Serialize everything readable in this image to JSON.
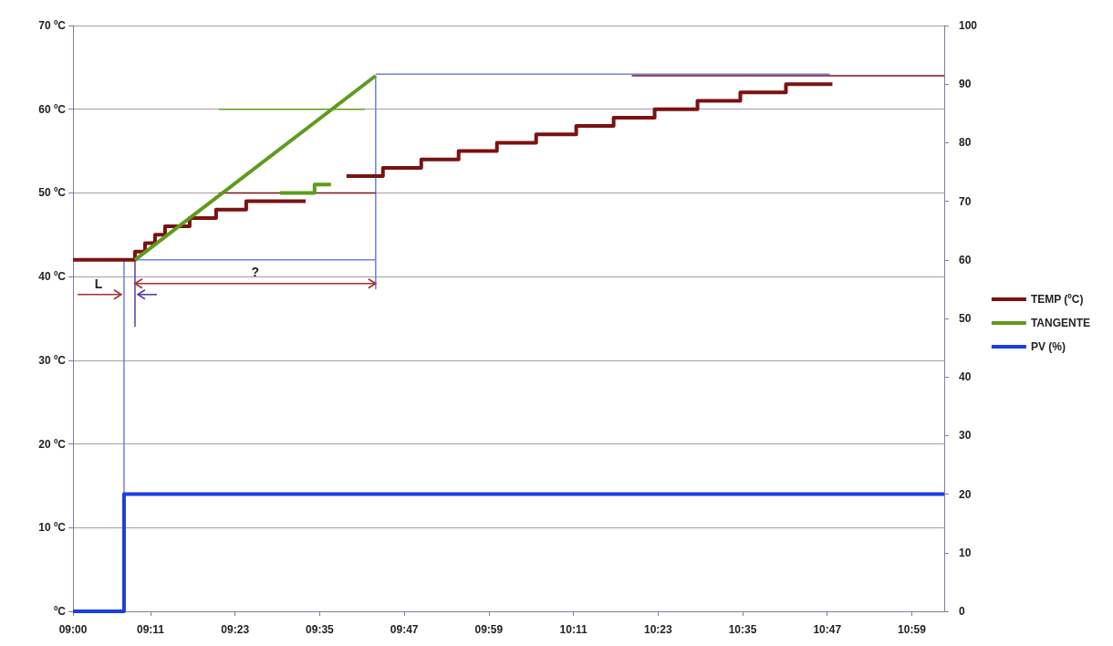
{
  "chart_data": {
    "type": "line",
    "x": [
      9,
      9.1207,
      11.06
    ],
    "xlim": [
      9,
      11.06
    ],
    "xticks": [
      {
        "value": 9,
        "label": "09:00"
      },
      {
        "value": 9.18333,
        "label": "09:11"
      },
      {
        "value": 9.38333,
        "label": "09:23"
      },
      {
        "value": 9.58333,
        "label": "09:35"
      },
      {
        "value": 9.78333,
        "label": "09:47"
      },
      {
        "value": 9.98333,
        "label": "09:59"
      },
      {
        "value": 10.18333,
        "label": "10:11"
      },
      {
        "value": 10.38333,
        "label": "10:23"
      },
      {
        "value": 10.58333,
        "label": "10:35"
      },
      {
        "value": 10.78333,
        "label": "10:47"
      },
      {
        "value": 10.98333,
        "label": "10:59"
      }
    ],
    "ylim": [
      0,
      70
    ],
    "yticks": [
      {
        "value": 0,
        "label": "ºC"
      },
      {
        "value": 10,
        "label": "10 ºC"
      },
      {
        "value": 20,
        "label": "20 ºC"
      },
      {
        "value": 30,
        "label": "30 ºC"
      },
      {
        "value": 40,
        "label": "40 ºC"
      },
      {
        "value": 50,
        "label": "50 ºC"
      },
      {
        "value": 60,
        "label": "60 ºC"
      },
      {
        "value": 70,
        "label": "70 ºC"
      }
    ],
    "y2lim": [
      0,
      100
    ],
    "y2ticks": [
      0,
      10,
      20,
      30,
      40,
      50,
      60,
      70,
      80,
      90,
      100
    ],
    "grid": "y",
    "legend": "right",
    "marker": "none",
    "line_style": "solid",
    "series": [
      {
        "name": "TEMP (ºC)",
        "type": "step",
        "color": "#7a1212",
        "x": [
          9,
          9.1466,
          9.1703,
          9.194,
          9.2177,
          9.2759,
          9.3384,
          9.4096,
          9.4893,
          9.55,
          9.6467,
          9.7329,
          9.8235,
          9.9118,
          10.0024,
          10.0951,
          10.1899,
          10.2783,
          10.3753,
          10.4766,
          10.5779,
          10.6857,
          10.7956
        ],
        "values": [
          42,
          43,
          44,
          45,
          46,
          47,
          48,
          49,
          49,
          null,
          52,
          53,
          54,
          55,
          56,
          57,
          58,
          59,
          60,
          61,
          62,
          63,
          63
        ]
      },
      {
        "name": "TANGENTE",
        "type": "line",
        "color": "#5e9c1c",
        "x": [
          9.1466,
          9.7157
        ],
        "values": [
          42,
          64
        ]
      },
      {
        "name": "PV (%)",
        "type": "step",
        "axis": "y2",
        "color": "#1a3fe0",
        "values": [
          0,
          20,
          20
        ]
      },
      {
        "type": "step",
        "color": "#5e9c1c",
        "x": [
          9.4893,
          9.5712,
          9.61
        ],
        "values": [
          50,
          51,
          51
        ]
      },
      {
        "type": "line",
        "color": "#6f7fe6",
        "x": [
          9.1207,
          9.1207
        ],
        "values": [
          14,
          42
        ]
      },
      {
        "type": "line",
        "color": "#6f7fe6",
        "x": [
          9.1466,
          9.7157
        ],
        "values": [
          42,
          42
        ]
      },
      {
        "type": "line",
        "color": "#6f7fe6",
        "x": [
          9.7157,
          9.7157
        ],
        "values": [
          64,
          38.5
        ]
      },
      {
        "type": "line",
        "color": "#6f7fe6",
        "x": [
          9.7157,
          10.7892
        ],
        "values": [
          64.2,
          64.2
        ]
      },
      {
        "type": "line",
        "color": "#7a1212",
        "x": [
          10.3214,
          11.06
        ],
        "values": [
          64,
          64
        ]
      },
      {
        "type": "line",
        "color": "#7a1212",
        "x": [
          9.3449,
          9.7157
        ],
        "values": [
          50,
          50
        ]
      },
      {
        "type": "line",
        "color": "#5e9c1c",
        "x": [
          9.3449,
          9.6898
        ],
        "values": [
          60,
          60
        ]
      },
      {
        "type": "line",
        "color": "#5b3fa0",
        "x": [
          9.1466,
          9.1466
        ],
        "values": [
          42,
          34
        ]
      }
    ],
    "annotations": [
      "L",
      "?"
    ]
  }
}
